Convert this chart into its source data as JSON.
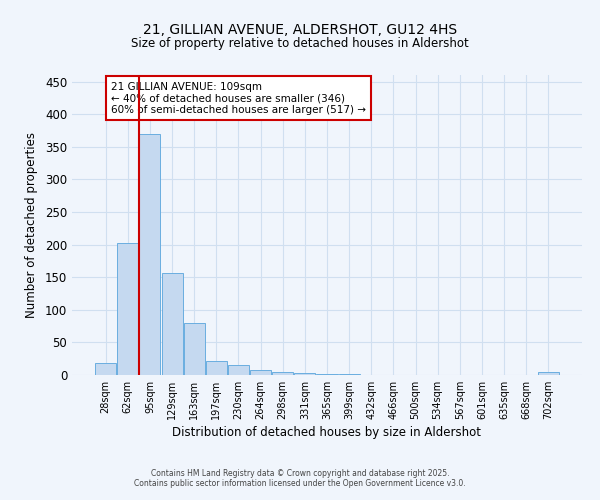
{
  "title1": "21, GILLIAN AVENUE, ALDERSHOT, GU12 4HS",
  "title2": "Size of property relative to detached houses in Aldershot",
  "xlabel": "Distribution of detached houses by size in Aldershot",
  "ylabel": "Number of detached properties",
  "categories": [
    "28sqm",
    "62sqm",
    "95sqm",
    "129sqm",
    "163sqm",
    "197sqm",
    "230sqm",
    "264sqm",
    "298sqm",
    "331sqm",
    "365sqm",
    "399sqm",
    "432sqm",
    "466sqm",
    "500sqm",
    "534sqm",
    "567sqm",
    "601sqm",
    "635sqm",
    "668sqm",
    "702sqm"
  ],
  "values": [
    18,
    202,
    370,
    157,
    80,
    22,
    15,
    7,
    5,
    3,
    1,
    2,
    0,
    0,
    0,
    0,
    0,
    0,
    0,
    0,
    4
  ],
  "bar_color": "#c5d9f0",
  "bar_edge_color": "#6aaee0",
  "grid_color": "#d0dff0",
  "background_color": "#f0f5fc",
  "vline_color": "#cc0000",
  "vline_pos": 2.0,
  "annotation_text": "21 GILLIAN AVENUE: 109sqm\n← 40% of detached houses are smaller (346)\n60% of semi-detached houses are larger (517) →",
  "annotation_box_color": "#ffffff",
  "annotation_box_edge": "#cc0000",
  "ylim": [
    0,
    460
  ],
  "yticks": [
    0,
    50,
    100,
    150,
    200,
    250,
    300,
    350,
    400,
    450
  ],
  "footer1": "Contains HM Land Registry data © Crown copyright and database right 2025.",
  "footer2": "Contains public sector information licensed under the Open Government Licence v3.0."
}
